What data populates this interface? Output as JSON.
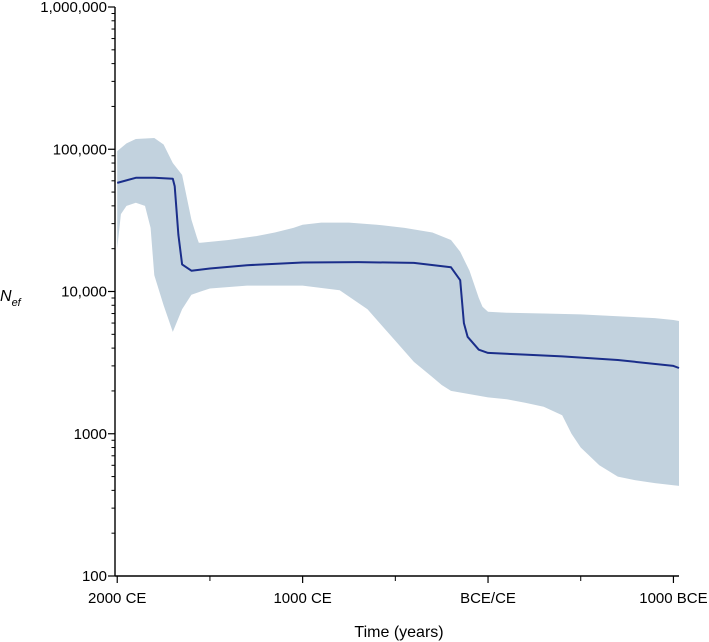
{
  "chart_data": {
    "type": "area",
    "xlabel": "Time (years)",
    "ylabel": "N",
    "ylabel_subscript": "ef",
    "yscale": "log",
    "ylim": [
      100,
      1000000
    ],
    "xlim": [
      2012,
      -1030
    ],
    "x_ticks": [
      {
        "value": 2000,
        "label": "2000 CE"
      },
      {
        "value": 1000,
        "label": "1000 CE"
      },
      {
        "value": 0,
        "label": "BCE/CE"
      },
      {
        "value": -1000,
        "label": "1000 BCE"
      }
    ],
    "x_minor_ticks": [
      1500,
      500,
      -500
    ],
    "y_ticks": [
      {
        "value": 100,
        "label": "100"
      },
      {
        "value": 1000,
        "label": "1000"
      },
      {
        "value": 10000,
        "label": "10,000"
      },
      {
        "value": 100000,
        "label": "100,000"
      },
      {
        "value": 1000000,
        "label": "1,000,000"
      }
    ],
    "colors": {
      "median": "#1a2e8a",
      "band": "#c2d2de",
      "axis": "#000000"
    },
    "median": {
      "x": [
        2000,
        1900,
        1800,
        1700,
        1690,
        1670,
        1650,
        1600,
        1500,
        1300,
        1000,
        700,
        400,
        200,
        150,
        130,
        110,
        50,
        0,
        -200,
        -400,
        -700,
        -1000,
        -1030
      ],
      "y": [
        58000,
        63000,
        63000,
        62000,
        55000,
        25000,
        15500,
        14000,
        14500,
        15300,
        16000,
        16100,
        15900,
        14800,
        12000,
        6000,
        4800,
        3900,
        3700,
        3600,
        3500,
        3300,
        3000,
        2900
      ]
    },
    "band_upper": {
      "x": [
        2000,
        1950,
        1900,
        1800,
        1750,
        1700,
        1650,
        1600,
        1570,
        1560,
        1550,
        1400,
        1250,
        1150,
        1050,
        1000,
        900,
        750,
        600,
        450,
        300,
        200,
        150,
        100,
        50,
        30,
        0,
        -100,
        -300,
        -500,
        -700,
        -900,
        -1000,
        -1030
      ],
      "y": [
        97000,
        110000,
        118000,
        120000,
        108000,
        80000,
        66000,
        32000,
        24000,
        22000,
        22000,
        23000,
        24500,
        26000,
        28000,
        29500,
        30500,
        30500,
        29500,
        28000,
        26000,
        23000,
        19000,
        14000,
        9000,
        7800,
        7200,
        7100,
        7000,
        6900,
        6700,
        6500,
        6300,
        6200
      ]
    },
    "band_lower": {
      "x": [
        2000,
        1980,
        1950,
        1900,
        1850,
        1820,
        1800,
        1750,
        1700,
        1650,
        1600,
        1550,
        1500,
        1300,
        1000,
        800,
        650,
        500,
        400,
        300,
        250,
        200,
        150,
        100,
        50,
        0,
        -100,
        -200,
        -300,
        -400,
        -450,
        -500,
        -600,
        -700,
        -800,
        -900,
        -1000,
        -1030
      ],
      "y": [
        20000,
        35000,
        40000,
        42000,
        40000,
        28000,
        13000,
        8000,
        5200,
        7500,
        9500,
        10000,
        10500,
        11000,
        11000,
        10200,
        7500,
        4500,
        3200,
        2500,
        2200,
        2000,
        1950,
        1900,
        1850,
        1800,
        1750,
        1650,
        1550,
        1350,
        1000,
        800,
        600,
        500,
        470,
        450,
        435,
        430
      ]
    }
  }
}
